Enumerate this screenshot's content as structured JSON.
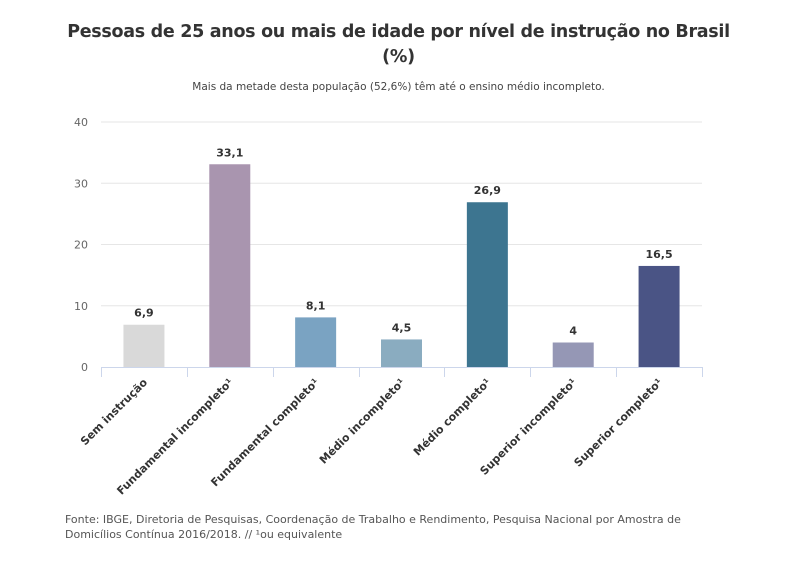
{
  "chart_data": {
    "type": "bar",
    "title": "Pessoas de 25 anos ou mais de idade por nível de instrução no Brasil (%)",
    "title_line1": "Pessoas de 25 anos ou mais de idade por nível de instrução no Brasil",
    "title_line2": "(%)",
    "subtitle": "Mais da metade desta população (52,6%) têm até o ensino médio incompleto.",
    "categories": [
      "Sem instrução",
      "Fundamental incompleto¹",
      "Fundamental completo¹",
      "Médio incompleto¹",
      "Médio completo¹",
      "Superior incompleto¹",
      "Superior completo¹"
    ],
    "values": [
      6.9,
      33.1,
      8.1,
      4.5,
      26.9,
      4,
      16.5
    ],
    "value_labels": [
      "6,9",
      "33,1",
      "8,1",
      "4,5",
      "26,9",
      "4",
      "16,5"
    ],
    "colors": [
      "#d9d9d9",
      "#a995af",
      "#7aa3c2",
      "#8aacc0",
      "#3d7590",
      "#9597b5",
      "#4a5485"
    ],
    "xlabel": "",
    "ylabel": "",
    "ylim": [
      0,
      40
    ],
    "yticks": [
      0,
      10,
      20,
      30,
      40
    ],
    "ytick_labels": [
      "0",
      "10",
      "20",
      "30",
      "40"
    ],
    "grid": true,
    "legend": "none"
  },
  "footer": {
    "line1": "Fonte: IBGE, Diretoria de Pesquisas, Coordenação de Trabalho e Rendimento, Pesquisa Nacional por Amostra de",
    "line2": "Domicílios Contínua 2016/2018. // ¹ou equivalente"
  }
}
